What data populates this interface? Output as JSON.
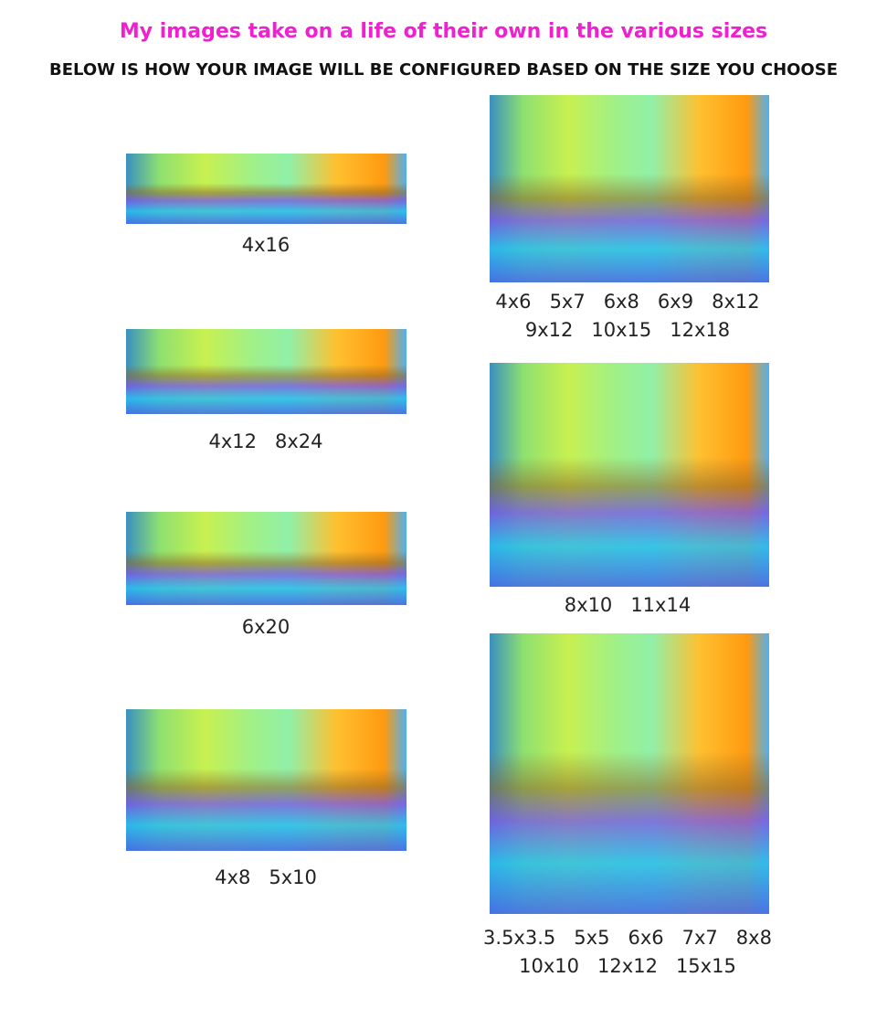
{
  "header": {
    "title": "My images take on a life of their own in the various sizes",
    "subtitle": "BELOW IS HOW YOUR IMAGE WILL BE CONFIGURED BASED ON THE SIZE YOU CHOOSE"
  },
  "images": [
    {
      "captions": [
        "4x16"
      ]
    },
    {
      "captions": [
        "4x12   8x24"
      ]
    },
    {
      "captions": [
        "6x20"
      ]
    },
    {
      "captions": [
        "4x8   5x10"
      ]
    },
    {
      "captions": [
        "4x6   5x7   6x8   6x9   8x12",
        "9x12   10x15   12x18"
      ]
    },
    {
      "captions": [
        "8x10   11x14"
      ]
    },
    {
      "captions": [
        "3.5x3.5   5x5   6x6   7x7   8x8",
        "10x10   12x12   15x15"
      ]
    }
  ]
}
